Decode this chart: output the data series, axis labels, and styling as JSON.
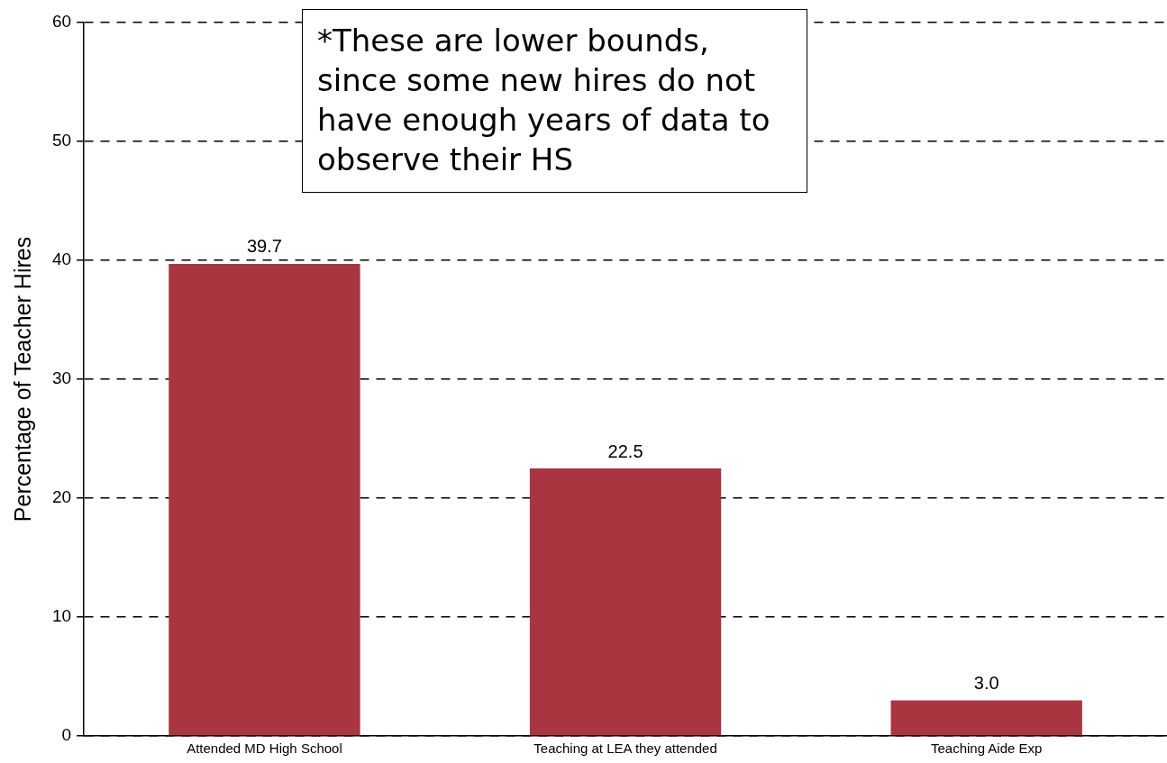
{
  "chart_data": {
    "type": "bar",
    "ylabel": "Percentage of Teacher Hires",
    "categories": [
      "Attended MD High School",
      "Teaching at LEA they attended",
      "Teaching Aide Exp"
    ],
    "values": [
      39.7,
      22.5,
      3.0
    ],
    "color": "#a83540",
    "ylim": [
      0,
      60
    ],
    "yticks": [
      0,
      10,
      20,
      30,
      40,
      50,
      60
    ],
    "grid": "y",
    "data_labels": true,
    "value_labels": [
      "39.7",
      "22.5",
      "3.0"
    ],
    "annotations": [
      "*These are lower bounds, since some new hires do not have enough years of data to observe their HS"
    ]
  }
}
